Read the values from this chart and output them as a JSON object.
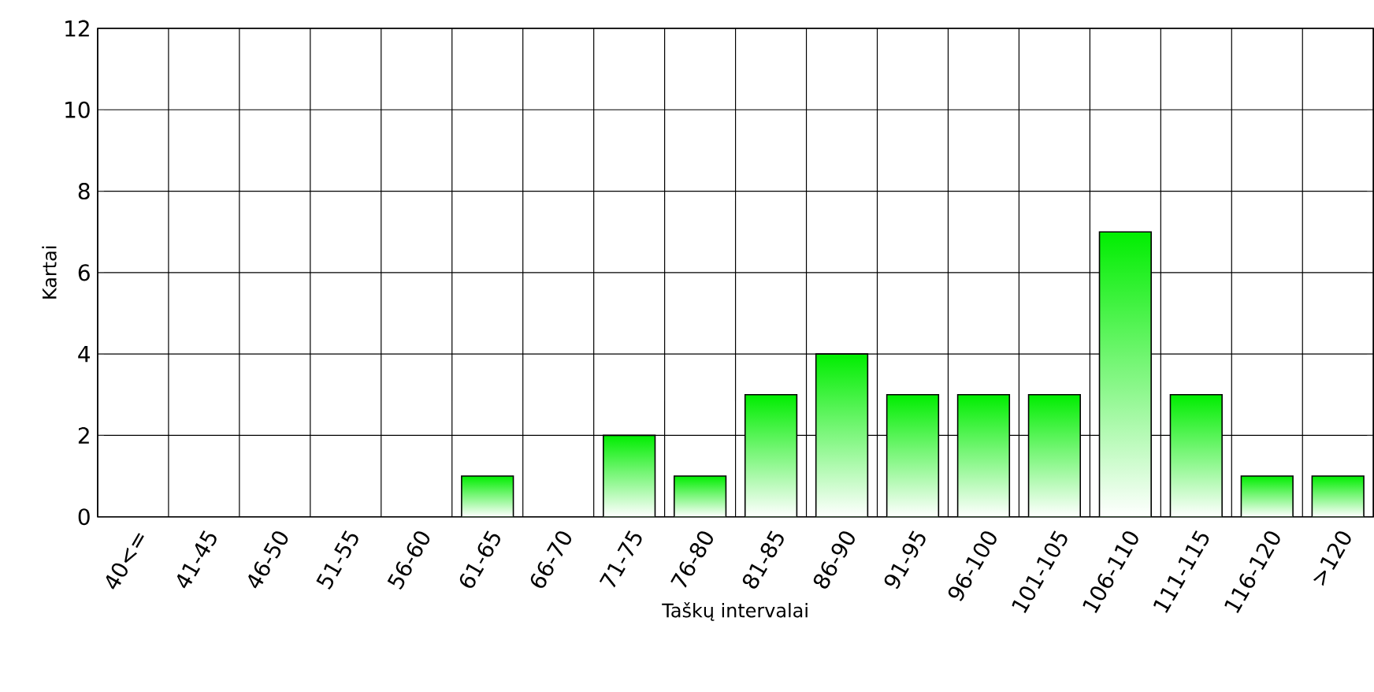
{
  "chart_data": {
    "type": "bar",
    "xlabel": "Taškų intervalai",
    "ylabel": "Kartai",
    "categories": [
      "40<=",
      "41-45",
      "46-50",
      "51-55",
      "56-60",
      "61-65",
      "66-70",
      "71-75",
      "76-80",
      "81-85",
      "86-90",
      "91-95",
      "96-100",
      "101-105",
      "106-110",
      "111-115",
      "116-120",
      ">120"
    ],
    "values": [
      0,
      0,
      0,
      0,
      0,
      1,
      0,
      2,
      1,
      3,
      4,
      3,
      3,
      3,
      7,
      3,
      1,
      1
    ],
    "color": "#00ee00",
    "ylim": [
      0,
      12
    ],
    "yticks": [
      0,
      2,
      4,
      6,
      8,
      10,
      12
    ],
    "grid": true
  }
}
